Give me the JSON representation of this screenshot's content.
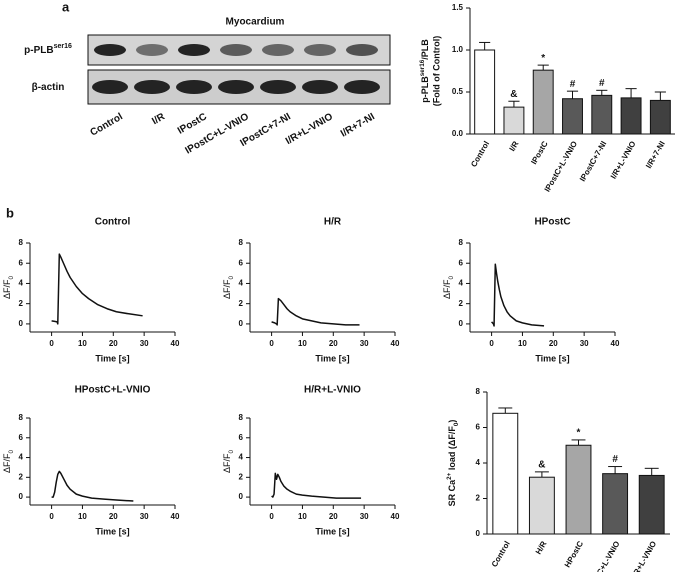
{
  "panels": [
    "a",
    "b"
  ],
  "blot": {
    "title": "Myocardium",
    "rows": [
      [
        {
          "text": "p-PLB"
        },
        {
          "text": "ser16",
          "shift": "sup"
        }
      ],
      [
        {
          "text": "β-actin"
        }
      ]
    ],
    "lanes": [
      "Control",
      "I/R",
      "IPostC",
      "IPostC+L-VNIO",
      "IPostC+7-NI",
      "I/R+L-VNIO",
      "I/R+7-NI"
    ]
  },
  "chart_data": [
    {
      "type": "bar",
      "ylabel": [
        {
          "text": "p-PLB"
        },
        {
          "text": "ser16",
          "shift": "sup"
        },
        {
          "text": "/PLB"
        }
      ],
      "ylabel_line2": "(Fold of Control)",
      "categories": [
        "Control",
        "I/R",
        "IPostC",
        "IPostC+L-VNIO",
        "IPostC+7-NI",
        "I/R+L-VNIO",
        "I/R+7-NI"
      ],
      "values": [
        1.0,
        0.32,
        0.76,
        0.42,
        0.46,
        0.43,
        0.4
      ],
      "errors": [
        0.09,
        0.07,
        0.06,
        0.09,
        0.06,
        0.11,
        0.1
      ],
      "annotations": [
        null,
        "&",
        "*",
        "#",
        "#",
        null,
        null
      ],
      "colors": [
        "#ffffff",
        "#d9d9d9",
        "#a6a6a6",
        "#595959",
        "#595959",
        "#404040",
        "#404040"
      ],
      "ylim": [
        0,
        1.5
      ],
      "yticks": [
        {
          "value": 0,
          "label": "0.0"
        },
        {
          "value": 0.5,
          "label": "0.5"
        },
        {
          "value": 1.0,
          "label": "1.0"
        },
        {
          "value": 1.5,
          "label": "1.5"
        }
      ]
    },
    {
      "type": "line",
      "title": "Control",
      "xlabel": "Time [s]",
      "ylabel": [
        {
          "text": "ΔF/F"
        },
        {
          "text": "0",
          "shift": "sub"
        }
      ],
      "color": "#111111",
      "x": [
        0,
        1,
        1.8,
        2,
        2.5,
        3,
        4,
        5,
        6,
        8,
        10,
        12,
        15,
        18,
        21,
        25,
        29.5
      ],
      "values": [
        0.3,
        0.25,
        0.2,
        0,
        6.9,
        6.6,
        5.9,
        5.2,
        4.6,
        3.7,
        3.0,
        2.5,
        1.9,
        1.5,
        1.2,
        1.0,
        0.8
      ],
      "xlim": [
        -7,
        40
      ],
      "xticks": [
        0,
        10,
        20,
        30,
        40
      ],
      "ylim": [
        -0.8,
        8
      ],
      "yticks": [
        0,
        2,
        4,
        6,
        8
      ]
    },
    {
      "type": "line",
      "title": "H/R",
      "xlabel": "Time [s]",
      "ylabel": [
        {
          "text": "ΔF/F"
        },
        {
          "text": "0",
          "shift": "sub"
        }
      ],
      "color": "#111111",
      "x": [
        0,
        1,
        1.6,
        1.8,
        2.2,
        3,
        4,
        5,
        6,
        8,
        10,
        13,
        16,
        20,
        24,
        28.5
      ],
      "values": [
        0.2,
        0.1,
        0,
        -0.1,
        2.5,
        2.3,
        1.9,
        1.5,
        1.2,
        0.8,
        0.5,
        0.3,
        0.1,
        0,
        -0.1,
        -0.1
      ],
      "xlim": [
        -7,
        40
      ],
      "xticks": [
        0,
        10,
        20,
        30,
        40
      ],
      "ylim": [
        -0.8,
        8
      ],
      "yticks": [
        0,
        2,
        4,
        6,
        8
      ]
    },
    {
      "type": "line",
      "title": "HPostC",
      "xlabel": "Time [s]",
      "ylabel": [
        {
          "text": "ΔF/F"
        },
        {
          "text": "0",
          "shift": "sub"
        }
      ],
      "color": "#111111",
      "x": [
        0,
        0.6,
        0.8,
        1.2,
        1.6,
        2,
        2.5,
        3,
        4,
        5,
        6,
        8,
        10,
        13,
        17
      ],
      "values": [
        0.2,
        0,
        -0.2,
        5.9,
        5.0,
        4.2,
        3.4,
        2.7,
        1.8,
        1.2,
        0.8,
        0.3,
        0.1,
        -0.1,
        -0.2
      ],
      "xlim": [
        -7,
        40
      ],
      "xticks": [
        0,
        10,
        20,
        30,
        40
      ],
      "ylim": [
        -0.8,
        8
      ],
      "yticks": [
        0,
        2,
        4,
        6,
        8
      ]
    },
    {
      "type": "line",
      "title": "HPostC+L-VNIO",
      "xlabel": "Time [s]",
      "ylabel": [
        {
          "text": "ΔF/F"
        },
        {
          "text": "0",
          "shift": "sub"
        }
      ],
      "color": "#111111",
      "x": [
        0,
        0.5,
        1,
        1.5,
        2,
        2.5,
        3,
        4,
        5,
        6,
        8,
        10,
        13,
        17,
        21,
        26.5
      ],
      "values": [
        0,
        0,
        0.5,
        1.5,
        2.3,
        2.6,
        2.4,
        1.8,
        1.2,
        0.8,
        0.3,
        0.1,
        -0.1,
        -0.2,
        -0.3,
        -0.4
      ],
      "xlim": [
        -7,
        40
      ],
      "xticks": [
        0,
        10,
        20,
        30,
        40
      ],
      "ylim": [
        -0.8,
        8
      ],
      "yticks": [
        0,
        2,
        4,
        6,
        8
      ]
    },
    {
      "type": "line",
      "title": "H/R+L-VNIO",
      "xlabel": "Time [s]",
      "ylabel": [
        {
          "text": "ΔF/F"
        },
        {
          "text": "0",
          "shift": "sub"
        }
      ],
      "color": "#111111",
      "x": [
        0,
        0.4,
        0.8,
        1.2,
        1.6,
        2,
        2.5,
        3,
        4,
        5,
        6,
        8,
        10,
        13,
        17,
        21,
        25,
        29
      ],
      "values": [
        0.1,
        0,
        0.3,
        2.4,
        1.8,
        2.3,
        2.0,
        1.6,
        1.1,
        0.8,
        0.6,
        0.3,
        0.2,
        0.1,
        0,
        -0.1,
        -0.1,
        -0.1
      ],
      "xlim": [
        -7,
        40
      ],
      "xticks": [
        0,
        10,
        20,
        30,
        40
      ],
      "ylim": [
        -0.8,
        8
      ],
      "yticks": [
        0,
        2,
        4,
        6,
        8
      ]
    },
    {
      "type": "bar",
      "ylabel": [
        {
          "text": "SR Ca"
        },
        {
          "text": "2+",
          "shift": "sup"
        },
        {
          "text": " load (ΔF/F"
        },
        {
          "text": "0",
          "shift": "sub"
        },
        {
          "text": ")"
        }
      ],
      "categories": [
        "Control",
        "H/R",
        "HPostC",
        "HPostC+L-VNIO",
        "H/R+L-VNIO"
      ],
      "values": [
        6.8,
        3.2,
        5.0,
        3.4,
        3.3
      ],
      "errors": [
        0.3,
        0.3,
        0.3,
        0.4,
        0.4
      ],
      "annotations": [
        null,
        "&",
        "*",
        "#",
        null
      ],
      "colors": [
        "#ffffff",
        "#d9d9d9",
        "#a6a6a6",
        "#595959",
        "#404040"
      ],
      "ylim": [
        0,
        8
      ],
      "yticks": [
        0,
        2,
        4,
        6,
        8
      ]
    }
  ]
}
